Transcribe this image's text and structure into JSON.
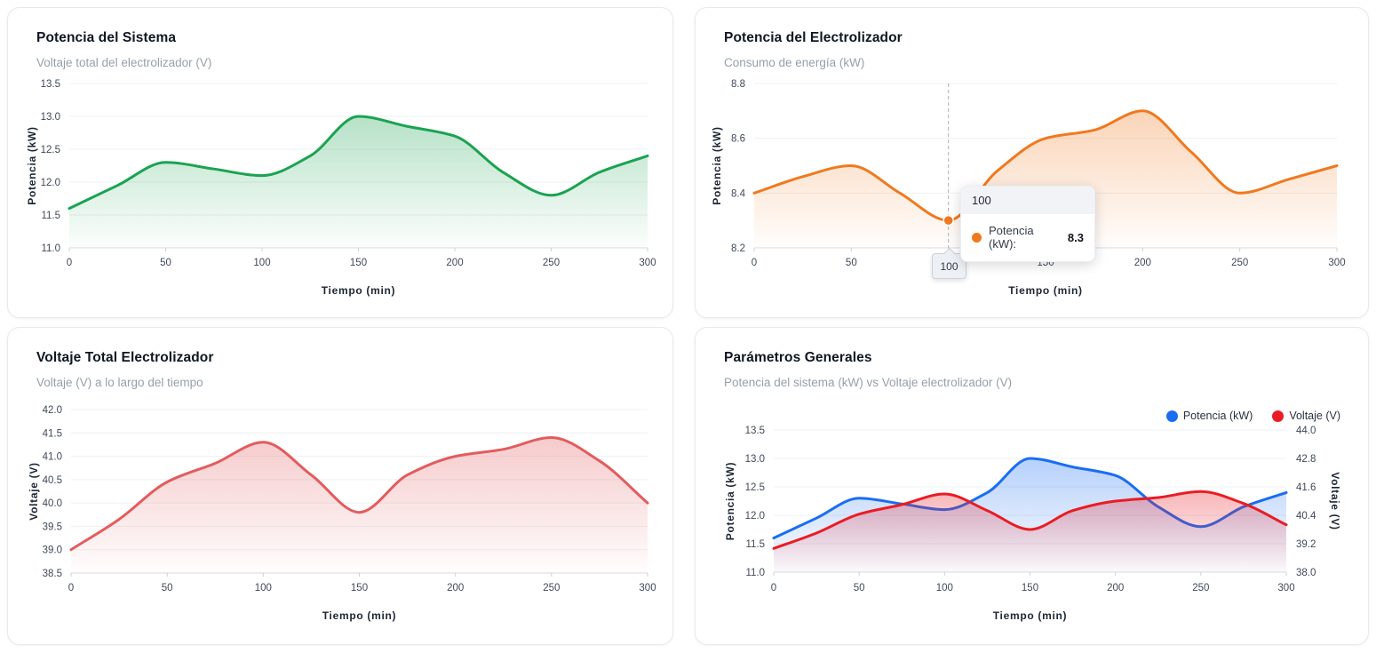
{
  "page": {
    "background": "#ffffff",
    "xlabel_shared": "Tiempo (min)"
  },
  "chart_data": [
    {
      "type": "area",
      "title": "Potencia del Sistema",
      "subtitle": "Voltaje total del electrolizador (V)",
      "xlabel": "Tiempo (min)",
      "ylabel": "Potencia (kW)",
      "x": [
        0,
        25,
        50,
        75,
        100,
        125,
        150,
        175,
        200,
        225,
        250,
        275,
        300
      ],
      "series": [
        {
          "name": "Potencia (kW)",
          "color": "#1ba351",
          "values": [
            11.6,
            11.95,
            12.3,
            12.2,
            12.1,
            12.4,
            13.0,
            12.85,
            12.7,
            12.15,
            11.8,
            12.15,
            12.4
          ]
        }
      ],
      "ylim": [
        11.0,
        13.5
      ],
      "yticks": [
        "11.0",
        "11.5",
        "12.0",
        "12.5",
        "13.0",
        "13.5"
      ],
      "xticks": [
        0,
        50,
        100,
        150,
        200,
        250,
        300
      ],
      "grid": true,
      "legend": "none"
    },
    {
      "type": "area",
      "title": "Potencia del Electrolizador",
      "subtitle": "Consumo de energía (kW)",
      "xlabel": "Tiempo (min)",
      "ylabel": "Potencia (kW)",
      "x": [
        0,
        25,
        50,
        75,
        100,
        125,
        150,
        175,
        200,
        225,
        250,
        275,
        300
      ],
      "series": [
        {
          "name": "Potencia (kW)",
          "color": "#f0791f",
          "values": [
            8.4,
            8.46,
            8.5,
            8.4,
            8.3,
            8.48,
            8.6,
            8.63,
            8.7,
            8.55,
            8.4,
            8.45,
            8.5
          ]
        }
      ],
      "ylim": [
        8.2,
        8.8
      ],
      "yticks": [
        "8.2",
        "8.4",
        "8.6",
        "8.8"
      ],
      "xticks": [
        0,
        50,
        100,
        150,
        200,
        250,
        300
      ],
      "grid": true,
      "legend": "none",
      "tooltip": {
        "at_x": 100,
        "at_y": 8.3,
        "header": "100",
        "series_label": "Potencia (kW):",
        "value": "8.3",
        "axis_label": "100"
      }
    },
    {
      "type": "area",
      "title": "Voltaje Total Electrolizador",
      "subtitle": "Voltaje (V) a lo largo del tiempo",
      "xlabel": "Tiempo (min)",
      "ylabel": "Voltaje (V)",
      "x": [
        0,
        25,
        50,
        75,
        100,
        125,
        150,
        175,
        200,
        225,
        250,
        275,
        300
      ],
      "series": [
        {
          "name": "Voltaje (V)",
          "color": "#e25c5e",
          "values": [
            39.0,
            39.65,
            40.45,
            40.85,
            41.3,
            40.6,
            39.8,
            40.6,
            41.0,
            41.15,
            41.4,
            40.9,
            40.0
          ]
        }
      ],
      "ylim": [
        38.5,
        42.0
      ],
      "yticks": [
        "38.5",
        "39.0",
        "39.5",
        "40.0",
        "40.5",
        "41.0",
        "41.5",
        "42.0"
      ],
      "xticks": [
        0,
        50,
        100,
        150,
        200,
        250,
        300
      ],
      "grid": true,
      "legend": "none"
    },
    {
      "type": "line-dual",
      "title": "Parámetros Generales",
      "subtitle": "Potencia del sistema (kW) vs Voltaje electrolizador (V)",
      "xlabel": "Tiempo (min)",
      "ylabel_left": "Potencia (kW)",
      "ylabel_right": "Voltaje (V)",
      "x": [
        0,
        25,
        50,
        75,
        100,
        125,
        150,
        175,
        200,
        225,
        250,
        275,
        300
      ],
      "series": [
        {
          "name": "Potencia (kW)",
          "color": "#1a6df2",
          "axis": "left",
          "values": [
            11.6,
            11.95,
            12.3,
            12.2,
            12.1,
            12.4,
            13.0,
            12.85,
            12.7,
            12.15,
            11.8,
            12.15,
            12.4
          ]
        },
        {
          "name": "Voltaje (V)",
          "color": "#ea1c24",
          "axis": "right",
          "values": [
            39.0,
            39.65,
            40.45,
            40.85,
            41.3,
            40.6,
            39.8,
            40.6,
            41.0,
            41.15,
            41.4,
            40.9,
            40.0
          ]
        }
      ],
      "ylim_left": [
        11.0,
        13.5
      ],
      "yticks_left": [
        "11.0",
        "11.5",
        "12.0",
        "12.5",
        "13.0",
        "13.5"
      ],
      "ylim_right": [
        38.0,
        44.0
      ],
      "yticks_right": [
        "38.0",
        "39.2",
        "40.4",
        "41.6",
        "42.8",
        "44.0"
      ],
      "xticks": [
        0,
        50,
        100,
        150,
        200,
        250,
        300
      ],
      "grid": true,
      "legend_position": "top-right"
    }
  ]
}
